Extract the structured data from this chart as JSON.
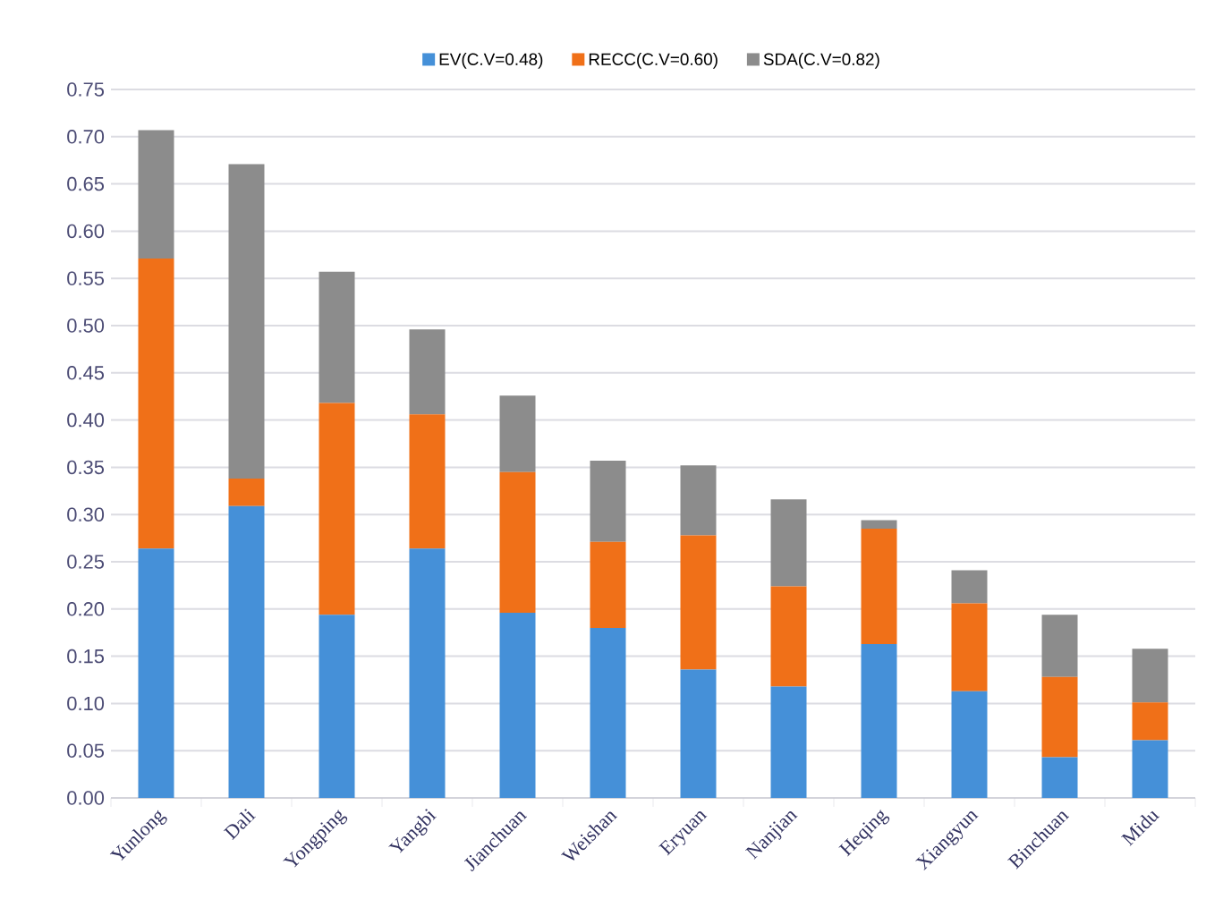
{
  "chart_data": {
    "type": "bar",
    "stacked": true,
    "legend": "top",
    "grid": "y",
    "categories": [
      "Yunlong",
      "Dali",
      "Yongping",
      "Yangbi",
      "Jianchuan",
      "Weishan",
      "Eryuan",
      "Nanjian",
      "Heqing",
      "Xiangyun",
      "Binchuan",
      "Midu"
    ],
    "series": [
      {
        "name": "EV(C.V=0.48)",
        "color": "#4590d8",
        "values": [
          0.264,
          0.309,
          0.194,
          0.264,
          0.196,
          0.18,
          0.136,
          0.118,
          0.163,
          0.113,
          0.043,
          0.061
        ]
      },
      {
        "name": "RECC(C.V=0.60)",
        "color": "#f07018",
        "values": [
          0.307,
          0.029,
          0.224,
          0.142,
          0.149,
          0.091,
          0.142,
          0.106,
          0.122,
          0.093,
          0.085,
          0.04
        ]
      },
      {
        "name": "SDA(C.V=0.82)",
        "color": "#8c8c8c",
        "values": [
          0.136,
          0.333,
          0.139,
          0.09,
          0.081,
          0.086,
          0.074,
          0.092,
          0.009,
          0.035,
          0.066,
          0.057
        ]
      }
    ],
    "ylim": [
      0,
      0.75
    ],
    "yticks": [
      {
        "value": 0,
        "label": "0.00"
      },
      {
        "value": 0.05,
        "label": "0.05"
      },
      {
        "value": 0.1,
        "label": "0.10"
      },
      {
        "value": 0.15,
        "label": "0.15"
      },
      {
        "value": 0.2,
        "label": "0.20"
      },
      {
        "value": 0.25,
        "label": "0.25"
      },
      {
        "value": 0.3,
        "label": "0.30"
      },
      {
        "value": 0.35,
        "label": "0.35"
      },
      {
        "value": 0.4,
        "label": "0.40"
      },
      {
        "value": 0.45,
        "label": "0.45"
      },
      {
        "value": 0.5,
        "label": "0.50"
      },
      {
        "value": 0.55,
        "label": "0.55"
      },
      {
        "value": 0.6,
        "label": "0.60"
      },
      {
        "value": 0.65,
        "label": "0.65"
      },
      {
        "value": 0.7,
        "label": "0.70"
      },
      {
        "value": 0.75,
        "label": "0.75"
      }
    ]
  }
}
